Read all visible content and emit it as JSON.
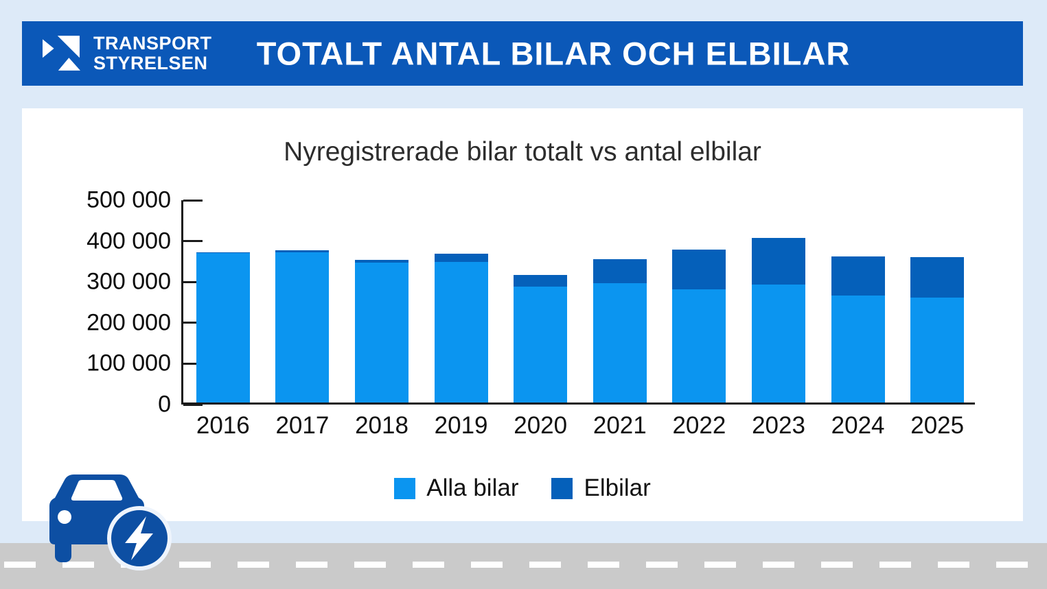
{
  "header": {
    "logo_line1": "TRANSPORT",
    "logo_line2": "STYRELSEN",
    "title": "TOTALT ANTAL BILAR OCH ELBILAR"
  },
  "colors": {
    "background": "#ddeaf8",
    "banner_blue": "#0b58b8",
    "card_white": "#ffffff",
    "light_bar_blue": "#0b95f0",
    "dark_bar_blue": "#0560ba",
    "car_icon_blue": "#0d4fa3",
    "road_gray": "#cacaca",
    "axis_black": "#1a1a1a"
  },
  "chart_data": {
    "type": "bar",
    "stacked": true,
    "title": "Nyregistrerade bilar totalt vs antal elbilar",
    "categories": [
      "2016",
      "2017",
      "2018",
      "2019",
      "2020",
      "2021",
      "2022",
      "2023",
      "2024",
      "2025"
    ],
    "series": [
      {
        "name": "Alla bilar",
        "color": "#0b95f0",
        "values": [
          365000,
          368000,
          342000,
          344000,
          284000,
          292000,
          277000,
          288000,
          261000,
          256000
        ]
      },
      {
        "name": "Elbilar",
        "color": "#0560ba",
        "values": [
          3000,
          4000,
          7000,
          20000,
          28000,
          58000,
          98000,
          115000,
          97000,
          99000
        ]
      }
    ],
    "ylim": [
      0,
      500000
    ],
    "ytick_values": [
      0,
      100000,
      200000,
      300000,
      400000,
      500000
    ],
    "ytick_labels": [
      "0",
      "100 000",
      "200 000",
      "300 000",
      "400 000",
      "500 000"
    ],
    "xlabel": "",
    "ylabel": "",
    "legend_position": "bottom",
    "grid": false
  }
}
